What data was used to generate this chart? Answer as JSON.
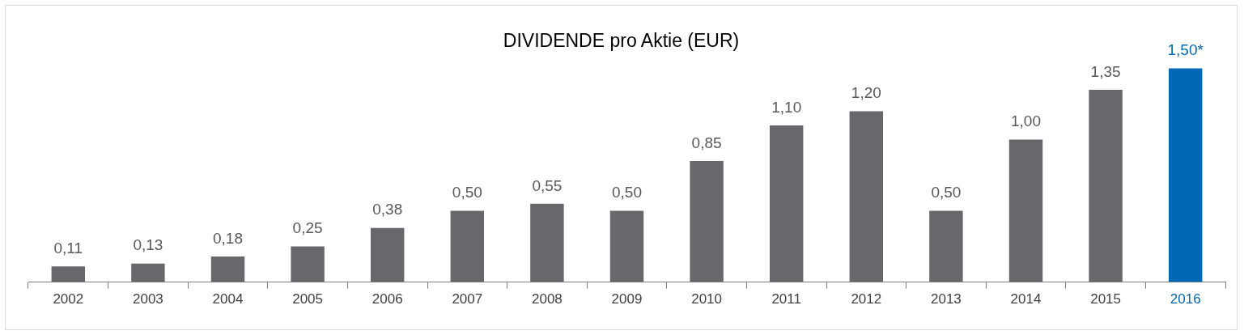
{
  "chart_data": {
    "type": "bar",
    "title": "DIVIDENDE pro Aktie (EUR)",
    "categories": [
      "2002",
      "2003",
      "2004",
      "2005",
      "2006",
      "2007",
      "2008",
      "2009",
      "2010",
      "2011",
      "2012",
      "2013",
      "2014",
      "2015",
      "2016"
    ],
    "values": [
      0.11,
      0.13,
      0.18,
      0.25,
      0.38,
      0.5,
      0.55,
      0.5,
      0.85,
      1.1,
      1.2,
      0.5,
      1.0,
      1.35,
      1.5
    ],
    "value_labels": [
      "0,11",
      "0,13",
      "0,18",
      "0,25",
      "0,38",
      "0,50",
      "0,55",
      "0,50",
      "0,85",
      "1,10",
      "1,20",
      "0,50",
      "1,00",
      "1,35",
      "1,50*"
    ],
    "colors": [
      "#68676c",
      "#68676c",
      "#68676c",
      "#68676c",
      "#68676c",
      "#68676c",
      "#68676c",
      "#68676c",
      "#68676c",
      "#68676c",
      "#68676c",
      "#68676c",
      "#68676c",
      "#68676c",
      "#0068b4"
    ],
    "legend": false,
    "grid": false
  }
}
